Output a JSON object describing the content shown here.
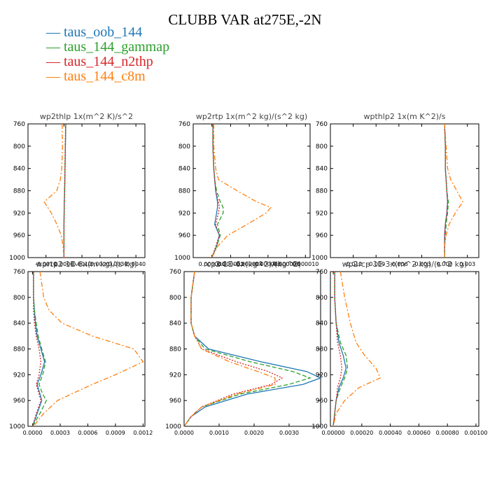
{
  "title": "CLUBB VAR at275E,-2N",
  "legend": [
    {
      "label": "taus_oob_144",
      "color": "#1f77b4",
      "dash": "solid"
    },
    {
      "label": "taus_144_gammap",
      "color": "#2ca02c",
      "dash": "dashed"
    },
    {
      "label": "taus_144_n2thp",
      "color": "#d62728",
      "dash": "dotted"
    },
    {
      "label": "taus_144_c8m",
      "color": "#ff7f0e",
      "dash": "dashdot"
    }
  ],
  "chart_data": [
    {
      "type": "line",
      "title": "wp2thlp  1x(m^2 K)/s^2",
      "xlim": [
        -0.002,
        0.0045
      ],
      "xticks": [
        -0.001,
        0.0,
        0.001,
        0.002,
        0.003,
        0.004
      ],
      "xtick_labels": [
        "-0.0010",
        "0.0000",
        "0.0010",
        "0.0020",
        "0.0030",
        "0.0040"
      ],
      "ylim": [
        760,
        1000
      ],
      "yticks": [
        760,
        800,
        840,
        880,
        920,
        960,
        1000
      ],
      "y": [
        760,
        800,
        840,
        860,
        880,
        900,
        920,
        940,
        960,
        980,
        1000
      ],
      "series": [
        {
          "name": "taus_oob_144",
          "values": [
            0.0001,
            8e-05,
            6e-05,
            5e-05,
            4e-05,
            2e-05,
            1e-05,
            0.0,
            0.0,
            0.0,
            0.0
          ]
        },
        {
          "name": "taus_144_gammap",
          "values": [
            0.0001,
            8e-05,
            6e-05,
            5e-05,
            3e-05,
            2e-05,
            1e-05,
            0.0,
            0.0,
            0.0,
            0.0
          ]
        },
        {
          "name": "taus_144_n2thp",
          "values": [
            9e-05,
            7e-05,
            5e-05,
            4e-05,
            3e-05,
            2e-05,
            1e-05,
            0.0,
            0.0,
            0.0,
            0.0
          ]
        },
        {
          "name": "taus_144_c8m",
          "values": [
            -0.0001,
            -8e-05,
            -0.00012,
            -0.0002,
            -0.0004,
            -0.0011,
            -0.0007,
            -0.0004,
            -0.00015,
            -5e-05,
            0.0
          ]
        }
      ]
    },
    {
      "type": "line",
      "title": "wp2rtp  1x(m^2 kg)/(s^2 kg)",
      "xlim": [
        -2e-06,
        1.05e-05
      ],
      "xticks": [
        0.0,
        2e-06,
        4e-06,
        6e-06,
        8e-06,
        1e-05
      ],
      "xtick_labels": [
        "0.000000",
        "0.000002",
        "0.000004",
        "0.000006",
        "0.000008",
        "0.000010"
      ],
      "ylim": [
        760,
        1000
      ],
      "yticks": [
        760,
        800,
        840,
        880,
        920,
        960,
        1000
      ],
      "y": [
        760,
        800,
        840,
        860,
        880,
        900,
        910,
        920,
        940,
        960,
        980,
        1000
      ],
      "series": [
        {
          "name": "taus_oob_144",
          "values": [
            1e-07,
            1e-07,
            2e-07,
            3e-07,
            4e-07,
            6e-07,
            6e-07,
            5e-07,
            3e-07,
            8e-07,
            5e-07,
            0.0
          ]
        },
        {
          "name": "taus_144_gammap",
          "values": [
            1e-07,
            1e-07,
            2e-07,
            3e-07,
            5e-07,
            9e-07,
            1.2e-06,
            1.2e-06,
            6e-07,
            9e-07,
            5e-07,
            0.0
          ]
        },
        {
          "name": "taus_144_n2thp",
          "values": [
            1e-07,
            1e-07,
            2e-07,
            3e-07,
            4e-07,
            7e-07,
            8e-07,
            7e-07,
            4e-07,
            8e-07,
            4e-07,
            0.0
          ]
        },
        {
          "name": "taus_144_c8m",
          "values": [
            2e-07,
            2e-07,
            4e-07,
            7e-07,
            2.7e-06,
            4.8e-06,
            6.3e-06,
            5.8e-06,
            3.8e-06,
            1.7e-06,
            6e-07,
            0.0
          ]
        }
      ]
    },
    {
      "type": "line",
      "title": "wpthlp2  1x(m K^2)/s",
      "xlim": [
        -0.015,
        0.0045
      ],
      "xticks": [
        -0.012,
        -0.009,
        -0.006,
        -0.003,
        0.0,
        0.003
      ],
      "xtick_labels": [
        "-0.012",
        "-0.009",
        "-0.006",
        "-0.003",
        "0.000",
        "0.003"
      ],
      "ylim": [
        760,
        1000
      ],
      "yticks": [
        760,
        800,
        840,
        880,
        920,
        960,
        1000
      ],
      "y": [
        760,
        800,
        840,
        860,
        880,
        900,
        920,
        940,
        960,
        980,
        1000
      ],
      "series": [
        {
          "name": "taus_oob_144",
          "values": [
            0.0,
            0.0001,
            0.0001,
            0.0002,
            0.0003,
            0.0004,
            0.0003,
            0.0001,
            0.0,
            0.0,
            0.0
          ]
        },
        {
          "name": "taus_144_gammap",
          "values": [
            0.0,
            0.0001,
            0.0001,
            0.0002,
            0.0003,
            0.0005,
            0.0004,
            0.0002,
            0.0001,
            0.0,
            0.0
          ]
        },
        {
          "name": "taus_144_n2thp",
          "values": [
            0.0,
            0.0001,
            0.0001,
            0.0002,
            0.0003,
            0.0004,
            0.0003,
            0.0001,
            0.0,
            0.0,
            0.0
          ]
        },
        {
          "name": "taus_144_c8m",
          "values": [
            0.0,
            0.0002,
            0.0004,
            0.0008,
            0.0016,
            0.0024,
            0.0014,
            0.0006,
            0.0002,
            0.0,
            0.0
          ]
        }
      ]
    },
    {
      "type": "line",
      "title": "wprtp2  1E-6x(m kg)/(s kg)",
      "xlim": [
        -5e-05,
        0.00122
      ],
      "xticks": [
        0.0,
        0.0003,
        0.0006,
        0.0009,
        0.0012
      ],
      "xtick_labels": [
        "0.0000",
        "0.0003",
        "0.0006",
        "0.0009",
        "0.0012"
      ],
      "ylim": [
        760,
        1000
      ],
      "yticks": [
        760,
        800,
        840,
        880,
        920,
        960,
        1000
      ],
      "y": [
        760,
        800,
        820,
        840,
        860,
        880,
        900,
        920,
        935,
        950,
        960,
        980,
        1000
      ],
      "series": [
        {
          "name": "taus_oob_144",
          "values": [
            1e-05,
            1e-05,
            2e-05,
            3e-05,
            5e-05,
            9e-05,
            0.00013,
            9e-05,
            5e-05,
            8e-05,
            0.0001,
            5e-05,
            0.0
          ]
        },
        {
          "name": "taus_144_gammap",
          "values": [
            1e-05,
            1e-05,
            2e-05,
            4e-05,
            6e-05,
            0.0001,
            0.00014,
            0.00011,
            7e-05,
            0.00011,
            0.00015,
            8e-05,
            0.0
          ]
        },
        {
          "name": "taus_144_n2thp",
          "values": [
            1e-05,
            1e-05,
            1e-05,
            2e-05,
            4e-05,
            7e-05,
            9e-05,
            7e-05,
            4e-05,
            7e-05,
            9e-05,
            4e-05,
            0.0
          ]
        },
        {
          "name": "taus_144_c8m",
          "values": [
            8e-05,
            0.00012,
            0.00018,
            0.00032,
            0.00065,
            0.0011,
            0.0012,
            0.0009,
            0.00065,
            0.00042,
            0.00027,
            0.00012,
            1e-05
          ]
        }
      ]
    },
    {
      "type": "line",
      "title": "rcp2  1E-6x(kg^2)/(kg^2)",
      "xlim": [
        0.0,
        0.0039
      ],
      "xticks": [
        0.0,
        0.001,
        0.002,
        0.003
      ],
      "xtick_labels": [
        "0.0000",
        "0.0010",
        "0.0020",
        "0.0030"
      ],
      "ylim": [
        760,
        1000
      ],
      "yticks": [
        760,
        800,
        840,
        880,
        920,
        960,
        1000
      ],
      "y": [
        760,
        800,
        840,
        860,
        880,
        900,
        915,
        925,
        935,
        950,
        970,
        985,
        1000
      ],
      "series": [
        {
          "name": "taus_oob_144",
          "values": [
            0.0003,
            0.0002,
            0.0002,
            0.0003,
            0.0007,
            0.0022,
            0.0035,
            0.0039,
            0.0034,
            0.0018,
            0.0006,
            0.0002,
            0.0
          ]
        },
        {
          "name": "taus_144_gammap",
          "values": [
            0.0003,
            0.0002,
            0.0002,
            0.0003,
            0.0006,
            0.0019,
            0.0031,
            0.0036,
            0.003,
            0.0016,
            0.0005,
            0.0002,
            0.0
          ]
        },
        {
          "name": "taus_144_n2thp",
          "values": [
            0.0003,
            0.0002,
            0.0002,
            0.0003,
            0.0005,
            0.0015,
            0.0024,
            0.0028,
            0.0025,
            0.0014,
            0.0005,
            0.0002,
            0.0
          ]
        },
        {
          "name": "taus_144_c8m",
          "values": [
            0.0003,
            0.0002,
            0.0002,
            0.0003,
            0.0005,
            0.0013,
            0.0021,
            0.0026,
            0.0026,
            0.0015,
            0.0005,
            0.0002,
            0.0
          ]
        }
      ]
    },
    {
      "type": "line",
      "title": "wp2rcp  1E-3x(m^2 kg)/(s^2 kg)",
      "xlim": [
        -2e-05,
        0.00102
      ],
      "xticks": [
        0.0,
        0.0002,
        0.0004,
        0.0006,
        0.0008,
        0.001
      ],
      "xtick_labels": [
        "0.00000",
        "0.00020",
        "0.00040",
        "0.00060",
        "0.00080",
        "0.00100"
      ],
      "ylim": [
        760,
        1000
      ],
      "yticks": [
        760,
        800,
        840,
        880,
        920,
        960,
        1000
      ],
      "y": [
        760,
        800,
        840,
        870,
        890,
        910,
        925,
        940,
        960,
        980,
        1000
      ],
      "series": [
        {
          "name": "taus_oob_144",
          "values": [
            1e-05,
            1e-05,
            2e-05,
            4e-05,
            7e-05,
            9e-05,
            7e-05,
            4e-05,
            2e-05,
            1e-05,
            0.0
          ]
        },
        {
          "name": "taus_144_gammap",
          "values": [
            1e-05,
            1e-05,
            2e-05,
            5e-05,
            9e-05,
            0.0001,
            8e-05,
            5e-05,
            2e-05,
            1e-05,
            0.0
          ]
        },
        {
          "name": "taus_144_n2thp",
          "values": [
            1e-05,
            1e-05,
            2e-05,
            3e-05,
            5e-05,
            6e-05,
            5e-05,
            3e-05,
            2e-05,
            1e-05,
            0.0
          ]
        },
        {
          "name": "taus_144_c8m",
          "values": [
            5e-05,
            8e-05,
            0.00012,
            0.00016,
            0.00022,
            0.0003,
            0.00033,
            0.00018,
            8e-05,
            2e-05,
            0.0
          ]
        }
      ]
    }
  ]
}
